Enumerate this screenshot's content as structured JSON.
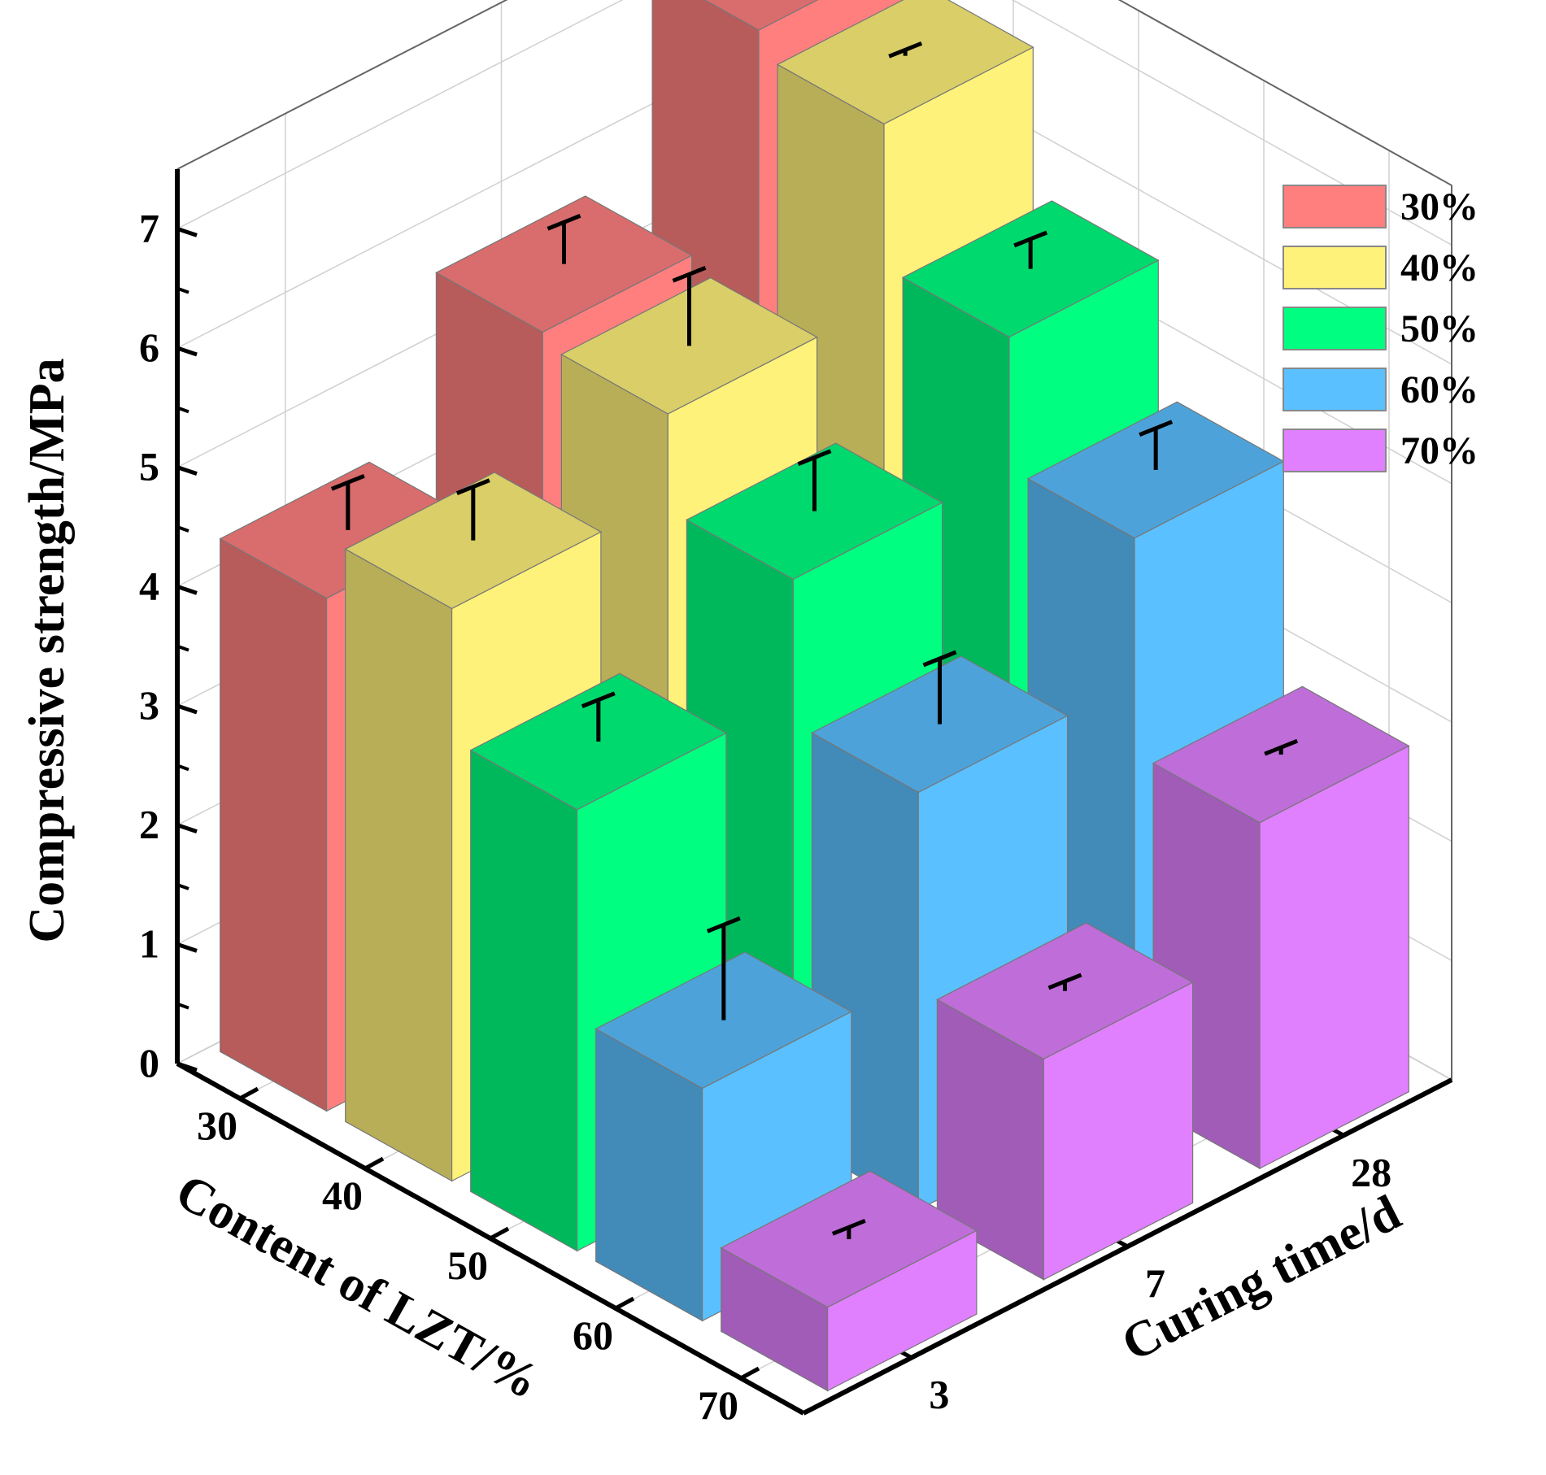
{
  "chart_data": {
    "type": "bar3d",
    "title": "",
    "zlabel": "Compressive strength/MPa",
    "xlabel": "Content of  LZT/%",
    "ylabel": "Curing time/d",
    "z_ticks": [
      "0",
      "1",
      "2",
      "3",
      "4",
      "5",
      "6",
      "7"
    ],
    "zlim": [
      0,
      7.5
    ],
    "content_categories": [
      "30",
      "40",
      "50",
      "60",
      "70"
    ],
    "curing_categories": [
      "3",
      "7",
      "28"
    ],
    "series": [
      {
        "name": "30%",
        "color": "#FF7F7F",
        "values": [
          4.3,
          5.6,
          7.2
        ],
        "errors": [
          0.4,
          0.35,
          0.15
        ]
      },
      {
        "name": "40%",
        "color": "#FFF27A",
        "values": [
          4.8,
          5.5,
          7.0
        ],
        "errors": [
          0.45,
          0.6,
          0.05
        ]
      },
      {
        "name": "50%",
        "color": "#00FF80",
        "values": [
          3.7,
          4.7,
          5.8
        ],
        "errors": [
          0.35,
          0.45,
          0.25
        ]
      },
      {
        "name": "60%",
        "color": "#5BC0FF",
        "values": [
          1.95,
          3.5,
          4.7
        ],
        "errors": [
          0.8,
          0.55,
          0.35
        ]
      },
      {
        "name": "70%",
        "color": "#E080FF",
        "values": [
          0.7,
          1.85,
          2.9
        ],
        "errors": [
          0.1,
          0.08,
          0.06
        ]
      }
    ],
    "legend": [
      {
        "label": "30%",
        "color": "#FF7F7F"
      },
      {
        "label": "40%",
        "color": "#FFF27A"
      },
      {
        "label": "50%",
        "color": "#00FF80"
      },
      {
        "label": "60%",
        "color": "#5BC0FF"
      },
      {
        "label": "70%",
        "color": "#E080FF"
      }
    ],
    "legend_position": "top-right"
  }
}
